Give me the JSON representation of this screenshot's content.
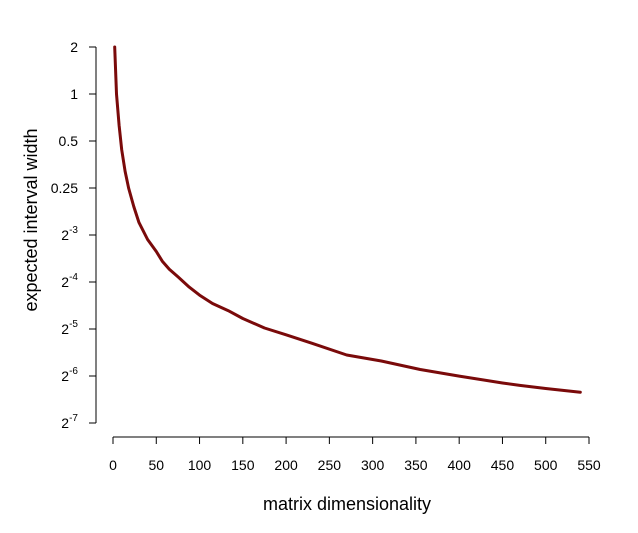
{
  "chart_data": {
    "type": "line",
    "title": "",
    "xlabel": "matrix dimensionality",
    "ylabel": "expected interval width",
    "xlim": [
      0,
      550
    ],
    "ylim_log2": [
      -7,
      1
    ],
    "y_scale": "log2",
    "grid": false,
    "x_ticks": [
      {
        "value": 0,
        "label": "0"
      },
      {
        "value": 50,
        "label": "50"
      },
      {
        "value": 100,
        "label": "100"
      },
      {
        "value": 150,
        "label": "150"
      },
      {
        "value": 200,
        "label": "200"
      },
      {
        "value": 250,
        "label": "250"
      },
      {
        "value": 300,
        "label": "300"
      },
      {
        "value": 350,
        "label": "350"
      },
      {
        "value": 400,
        "label": "400"
      },
      {
        "value": 450,
        "label": "450"
      },
      {
        "value": 500,
        "label": "500"
      },
      {
        "value": 550,
        "label": "550"
      }
    ],
    "y_ticks": [
      {
        "value": 2,
        "base": "2",
        "exp": ""
      },
      {
        "value": 1,
        "base": "1",
        "exp": ""
      },
      {
        "value": 0.5,
        "base": "0.5",
        "exp": ""
      },
      {
        "value": 0.25,
        "base": "0.25",
        "exp": ""
      },
      {
        "value": 0.125,
        "base": "2",
        "exp": "-3"
      },
      {
        "value": 0.0625,
        "base": "2",
        "exp": "-4"
      },
      {
        "value": 0.03125,
        "base": "2",
        "exp": "-5"
      },
      {
        "value": 0.015625,
        "base": "2",
        "exp": "-6"
      },
      {
        "value": 0.0078125,
        "base": "2",
        "exp": "-7"
      }
    ],
    "series": [
      {
        "color": "#7a0a0a",
        "x": [
          2,
          4,
          7,
          10,
          14,
          18,
          24,
          30,
          40,
          50,
          57,
          65,
          75,
          88,
          100,
          115,
          133,
          150,
          175,
          200,
          230,
          270,
          310,
          355,
          400,
          450,
          470,
          500,
          540
        ],
        "y": [
          2.0,
          1.0,
          0.63,
          0.44,
          0.32,
          0.25,
          0.19,
          0.15,
          0.117,
          0.098,
          0.085,
          0.0755,
          0.0675,
          0.058,
          0.0515,
          0.0455,
          0.041,
          0.0365,
          0.0317,
          0.0287,
          0.0253,
          0.0213,
          0.0195,
          0.0172,
          0.0156,
          0.0141,
          0.0136,
          0.013,
          0.0123
        ]
      }
    ]
  }
}
